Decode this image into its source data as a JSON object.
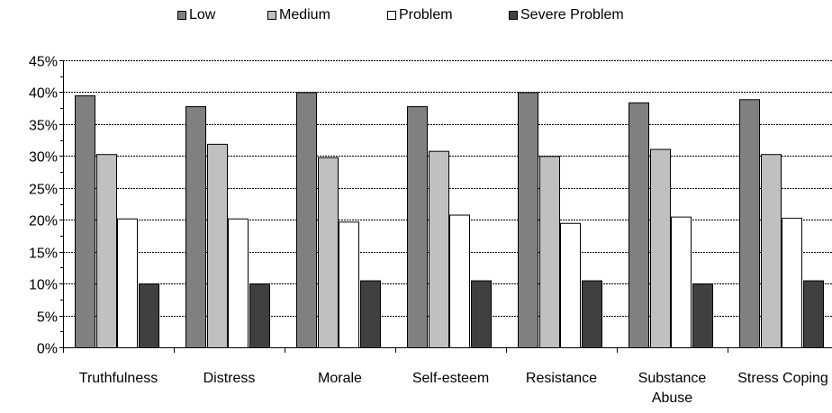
{
  "chart_data": {
    "type": "bar",
    "title": "",
    "xlabel": "",
    "ylabel": "",
    "ylim": [
      0,
      45
    ],
    "y_tick_labels": [
      "0%",
      "5%",
      "10%",
      "15%",
      "20%",
      "25%",
      "30%",
      "35%",
      "40%",
      "45%"
    ],
    "y_ticks": [
      0,
      5,
      10,
      15,
      20,
      25,
      30,
      35,
      40,
      45
    ],
    "grid": true,
    "legend_position": "top",
    "categories": [
      "Truthfulness",
      "Distress",
      "Morale",
      "Self-esteem",
      "Resistance",
      "Substance Abuse",
      "Stress Coping"
    ],
    "series": [
      {
        "name": "Low",
        "color": "#808080",
        "values": [
          39.5,
          37.8,
          40.0,
          37.8,
          40.0,
          38.4,
          38.9
        ]
      },
      {
        "name": "Medium",
        "color": "#c0c0c0",
        "values": [
          30.3,
          31.9,
          29.8,
          30.8,
          30.0,
          31.1,
          30.3
        ]
      },
      {
        "name": "Problem",
        "color": "#ffffff",
        "values": [
          20.2,
          20.2,
          19.7,
          20.8,
          19.5,
          20.5,
          20.3
        ]
      },
      {
        "name": "Severe Problem",
        "color": "#404040",
        "values": [
          10.0,
          10.0,
          10.5,
          10.5,
          10.5,
          10.0,
          10.5
        ]
      }
    ]
  }
}
